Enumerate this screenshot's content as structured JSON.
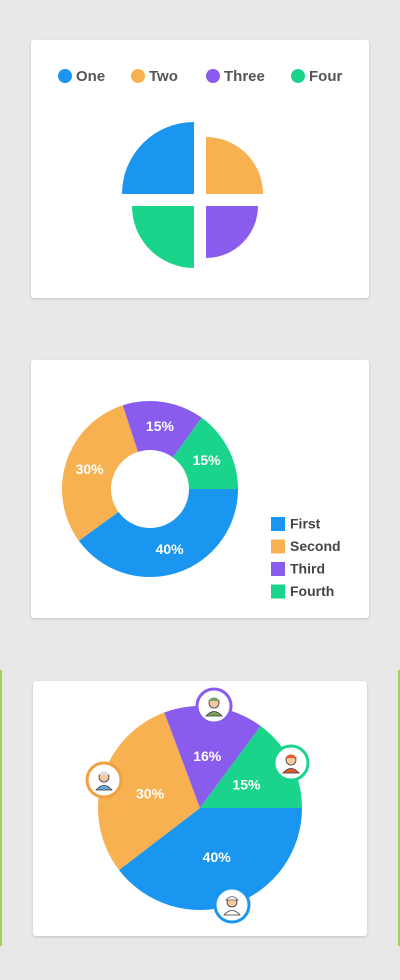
{
  "chart_data": [
    {
      "type": "polar",
      "categories": [
        "One",
        "Two",
        "Three",
        "Four"
      ],
      "values": [
        72,
        57,
        52,
        62
      ],
      "colors": [
        "#1a96f0",
        "#f8b150",
        "#8a5ced",
        "#1bd48b"
      ],
      "legend": "top"
    },
    {
      "type": "donut",
      "categories": [
        "First",
        "Second",
        "Third",
        "Fourth"
      ],
      "values": [
        40,
        30,
        15,
        15
      ],
      "value_labels": [
        "40%",
        "30%",
        "15%",
        "15%"
      ],
      "colors": [
        "#1a96f0",
        "#f8b150",
        "#8a5ced",
        "#1bd48b"
      ],
      "legend": "bottom-right"
    },
    {
      "type": "pie",
      "values": [
        40,
        30,
        16,
        15
      ],
      "value_labels": [
        "40%",
        "30%",
        "16%",
        "15%"
      ],
      "colors": [
        "#1a96f0",
        "#f8b150",
        "#8a5ced",
        "#1bd48b"
      ]
    }
  ]
}
